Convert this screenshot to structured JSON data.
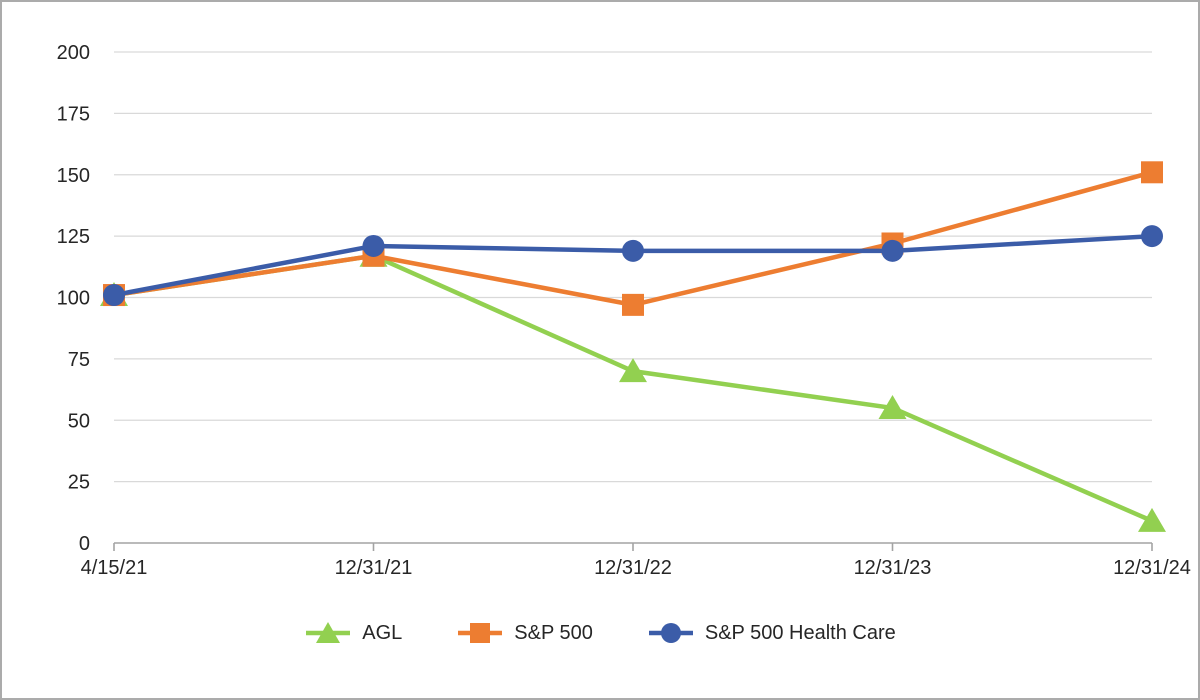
{
  "frame": {
    "background_color": "#FFFFFF",
    "border_color": "#ABABAB"
  },
  "chart_data": {
    "type": "line",
    "title": "",
    "xlabel": "",
    "ylabel": "",
    "categories": [
      "4/15/21",
      "12/31/21",
      "12/31/22",
      "12/31/23",
      "12/31/24"
    ],
    "series": [
      {
        "name": "AGL",
        "marker": "triangle",
        "color": "#92D050",
        "values": [
          101,
          117,
          70,
          55,
          9
        ]
      },
      {
        "name": "S&P 500",
        "marker": "square",
        "color": "#ED7D31",
        "values": [
          101,
          117,
          97,
          122,
          151
        ]
      },
      {
        "name": "S&P 500 Health Care",
        "marker": "circle",
        "color": "#3B5CA8",
        "values": [
          101,
          121,
          119,
          119,
          125
        ]
      }
    ],
    "ylim": [
      0,
      200
    ],
    "yticks": [
      0,
      25,
      50,
      75,
      100,
      125,
      150,
      175,
      200
    ],
    "grid": true,
    "gridline_color": "#D9D9D9",
    "axis_color": "#A3A3A3",
    "text_color": "#262626",
    "legend_position": "bottom"
  }
}
